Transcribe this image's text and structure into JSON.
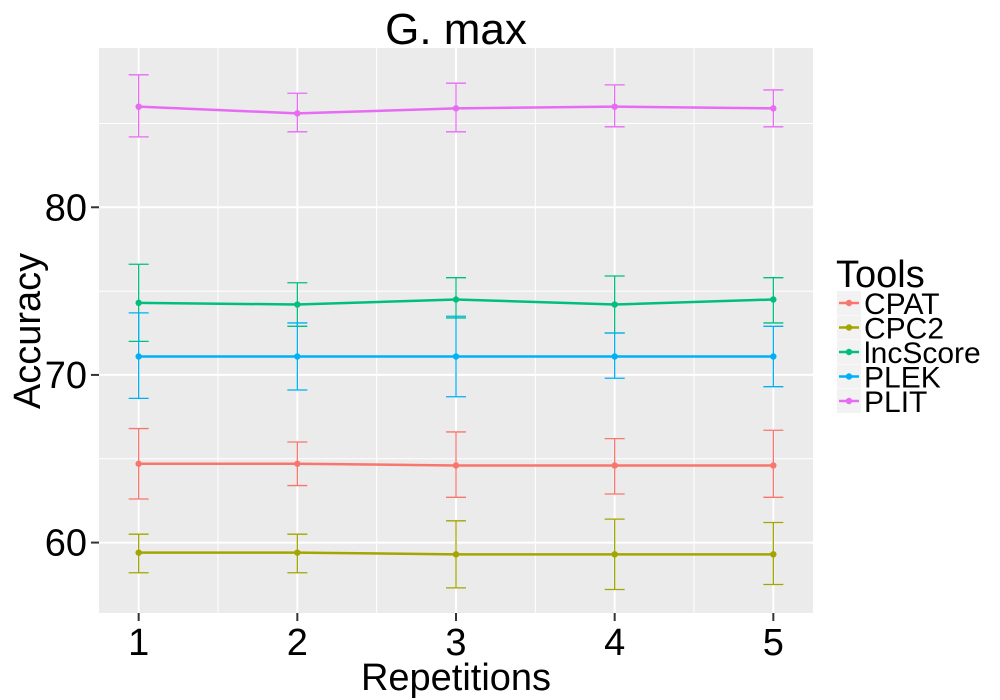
{
  "chart_data": {
    "type": "line",
    "title": "G. max",
    "xlabel": "Repetitions",
    "ylabel": "Accuracy",
    "x": [
      1,
      2,
      3,
      4,
      5
    ],
    "xlim": [
      0.75,
      5.25
    ],
    "ylim": [
      55.8,
      89.5
    ],
    "yticks": [
      60,
      70,
      80
    ],
    "grid": true,
    "legend": {
      "title": "Tools",
      "position": "right"
    },
    "series": [
      {
        "name": "CPAT",
        "color": "#F8766D",
        "values": [
          64.7,
          64.7,
          64.6,
          64.6,
          64.6
        ],
        "lower": [
          62.6,
          63.4,
          62.7,
          62.9,
          62.7
        ],
        "upper": [
          66.8,
          66.0,
          66.6,
          66.2,
          66.7
        ]
      },
      {
        "name": "CPC2",
        "color": "#A3A500",
        "values": [
          59.4,
          59.4,
          59.3,
          59.3,
          59.3
        ],
        "lower": [
          58.2,
          58.2,
          57.3,
          57.2,
          57.5
        ],
        "upper": [
          60.5,
          60.5,
          61.3,
          61.4,
          61.2
        ]
      },
      {
        "name": "lncScore",
        "color": "#00BF7D",
        "values": [
          74.3,
          74.2,
          74.5,
          74.2,
          74.5
        ],
        "lower": [
          72.0,
          72.9,
          73.4,
          72.5,
          73.1
        ],
        "upper": [
          76.6,
          75.5,
          75.8,
          75.9,
          75.8
        ]
      },
      {
        "name": "PLEK",
        "color": "#00B0F6",
        "values": [
          71.1,
          71.1,
          71.1,
          71.1,
          71.1
        ],
        "lower": [
          68.6,
          69.1,
          68.7,
          69.8,
          69.3
        ],
        "upper": [
          73.7,
          73.1,
          73.5,
          72.5,
          72.9
        ]
      },
      {
        "name": "PLIT",
        "color": "#E76BF3",
        "values": [
          86.0,
          85.6,
          85.9,
          86.0,
          85.9
        ],
        "lower": [
          84.2,
          84.5,
          84.5,
          84.8,
          84.8
        ],
        "upper": [
          87.9,
          86.8,
          87.4,
          87.3,
          87.0
        ]
      }
    ]
  }
}
